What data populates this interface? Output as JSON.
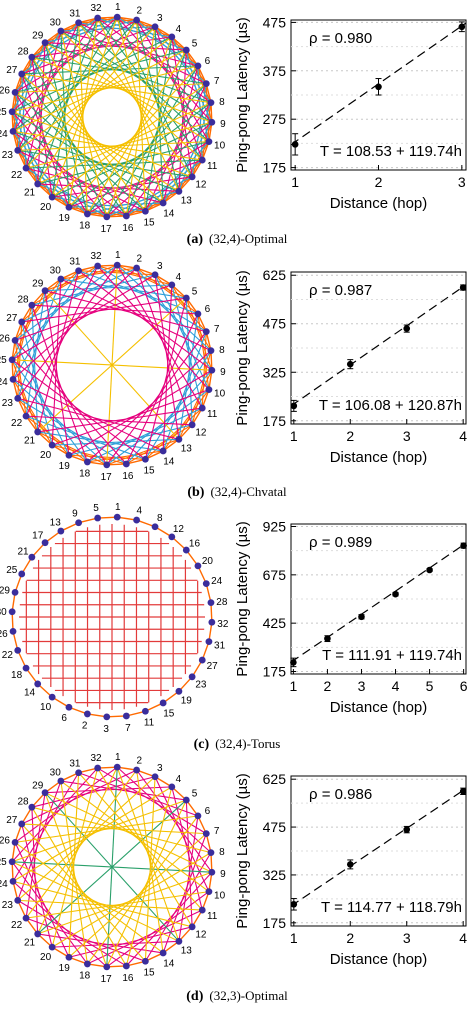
{
  "panels": [
    {
      "caption_letter": "(a)",
      "caption_text": "(32,4)-Optimal",
      "graph": {
        "node_labels": [
          "1",
          "2",
          "3",
          "4",
          "5",
          "6",
          "7",
          "8",
          "9",
          "10",
          "11",
          "12",
          "13",
          "14",
          "15",
          "16",
          "17",
          "18",
          "19",
          "20",
          "21",
          "22",
          "23",
          "24",
          "25",
          "26",
          "27",
          "28",
          "29",
          "30",
          "31",
          "32"
        ],
        "offsets": [
          3,
          5,
          8,
          11,
          13
        ],
        "edge_colors": [
          "#ff6a00",
          "#2e9fd8",
          "#e6007e",
          "#2aa06a",
          "#f5c000"
        ]
      },
      "chart_data": {
        "type": "scatter",
        "x": [
          1,
          2,
          3
        ],
        "y": [
          223,
          342,
          466
        ],
        "error": [
          22,
          17,
          10
        ],
        "xlabel": "Distance (hop)",
        "ylabel": "Ping-pong Latency (µs)",
        "xticks": [
          "1",
          "2",
          "3"
        ],
        "yticks": [
          175,
          275,
          375,
          475
        ],
        "xlim": [
          0.95,
          3.05
        ],
        "ylim": [
          170,
          480
        ],
        "rho_text": "ρ = 0.980",
        "fit_text": "T = 108.53 + 119.74h",
        "fit": {
          "intercept": 108.53,
          "slope": 119.74
        }
      }
    },
    {
      "caption_letter": "(b)",
      "caption_text": "(32,4)-Chvatal",
      "graph": {
        "node_labels": [
          "1",
          "2",
          "3",
          "4",
          "5",
          "6",
          "7",
          "8",
          "9",
          "10",
          "11",
          "12",
          "13",
          "14",
          "15",
          "16",
          "17",
          "18",
          "19",
          "20",
          "21",
          "22",
          "23",
          "24",
          "25",
          "26",
          "27",
          "28",
          "29",
          "30",
          "31",
          "32"
        ],
        "offsets": [
          4,
          7,
          16,
          10
        ],
        "edge_colors": [
          "#ff6a00",
          "#2e9fd8",
          "#f5c000",
          "#e6007e"
        ]
      },
      "chart_data": {
        "type": "scatter",
        "x": [
          1,
          2,
          3,
          4
        ],
        "y": [
          221,
          350,
          460,
          587
        ],
        "error": [
          17,
          14,
          11,
          8
        ],
        "xlabel": "Distance (hop)",
        "ylabel": "Ping-pong Latency (µs)",
        "xticks": [
          "1",
          "2",
          "3",
          "4"
        ],
        "yticks": [
          175,
          325,
          475,
          625
        ],
        "xlim": [
          0.95,
          4.05
        ],
        "ylim": [
          165,
          635
        ],
        "rho_text": "ρ = 0.987",
        "fit_text": "T = 106.08 + 120.87h",
        "fit": {
          "intercept": 106.08,
          "slope": 120.87
        }
      }
    },
    {
      "caption_letter": "(c)",
      "caption_text": "(32,4)-Torus",
      "graph": {
        "node_labels": [
          "1",
          "4",
          "8",
          "12",
          "16",
          "20",
          "24",
          "28",
          "32",
          "31",
          "27",
          "23",
          "19",
          "15",
          "11",
          "7",
          "3",
          "2",
          "6",
          "10",
          "14",
          "18",
          "22",
          "26",
          "30",
          "29",
          "25",
          "21",
          "17",
          "13",
          "9",
          "5"
        ],
        "offsets": [],
        "edge_colors": [
          "#e23b3b"
        ]
      },
      "chart_data": {
        "type": "scatter",
        "x": [
          1,
          2,
          3,
          4,
          5,
          6
        ],
        "y": [
          222,
          345,
          458,
          575,
          700,
          826
        ],
        "error": [
          22,
          15,
          11,
          9,
          7,
          13
        ],
        "xlabel": "Distance (hop)",
        "ylabel": "Ping-pong Latency (µs)",
        "xticks": [
          "1",
          "2",
          "3",
          "4",
          "5",
          "6"
        ],
        "yticks": [
          175,
          425,
          675,
          925
        ],
        "xlim": [
          0.93,
          6.07
        ],
        "ylim": [
          162,
          938
        ],
        "rho_text": "ρ = 0.989",
        "fit_text": "T = 111.91 + 119.74h",
        "fit": {
          "intercept": 111.91,
          "slope": 119.74
        }
      }
    },
    {
      "caption_letter": "(d)",
      "caption_text": "(32,3)-Optimal",
      "graph": {
        "node_labels": [
          "1",
          "2",
          "3",
          "4",
          "5",
          "6",
          "7",
          "8",
          "9",
          "10",
          "11",
          "12",
          "13",
          "14",
          "15",
          "16",
          "17",
          "18",
          "19",
          "20",
          "21",
          "22",
          "23",
          "24",
          "25",
          "26",
          "27",
          "28",
          "29",
          "30",
          "31",
          "32"
        ],
        "offsets": [
          7,
          16,
          12
        ],
        "edge_colors": [
          "#e6007e",
          "#2aa06a",
          "#f5c000",
          "#2e9fd8"
        ]
      },
      "chart_data": {
        "type": "scatter",
        "x": [
          1,
          2,
          3,
          4
        ],
        "y": [
          233,
          358,
          467,
          587
        ],
        "error": [
          18,
          14,
          10,
          10
        ],
        "xlabel": "Distance (hop)",
        "ylabel": "Ping-pong Latency (µs)",
        "xticks": [
          "1",
          "2",
          "3",
          "4"
        ],
        "yticks": [
          175,
          325,
          475,
          625
        ],
        "xlim": [
          0.95,
          4.05
        ],
        "ylim": [
          165,
          635
        ],
        "rho_text": "ρ = 0.986",
        "fit_text": "T = 114.77 + 118.79h",
        "fit": {
          "intercept": 114.77,
          "slope": 118.79
        }
      }
    }
  ],
  "colors": {
    "ring": "#ff6a00",
    "node": "#3a2d9c",
    "point": "#000000",
    "grid": "#c8c8c8"
  }
}
